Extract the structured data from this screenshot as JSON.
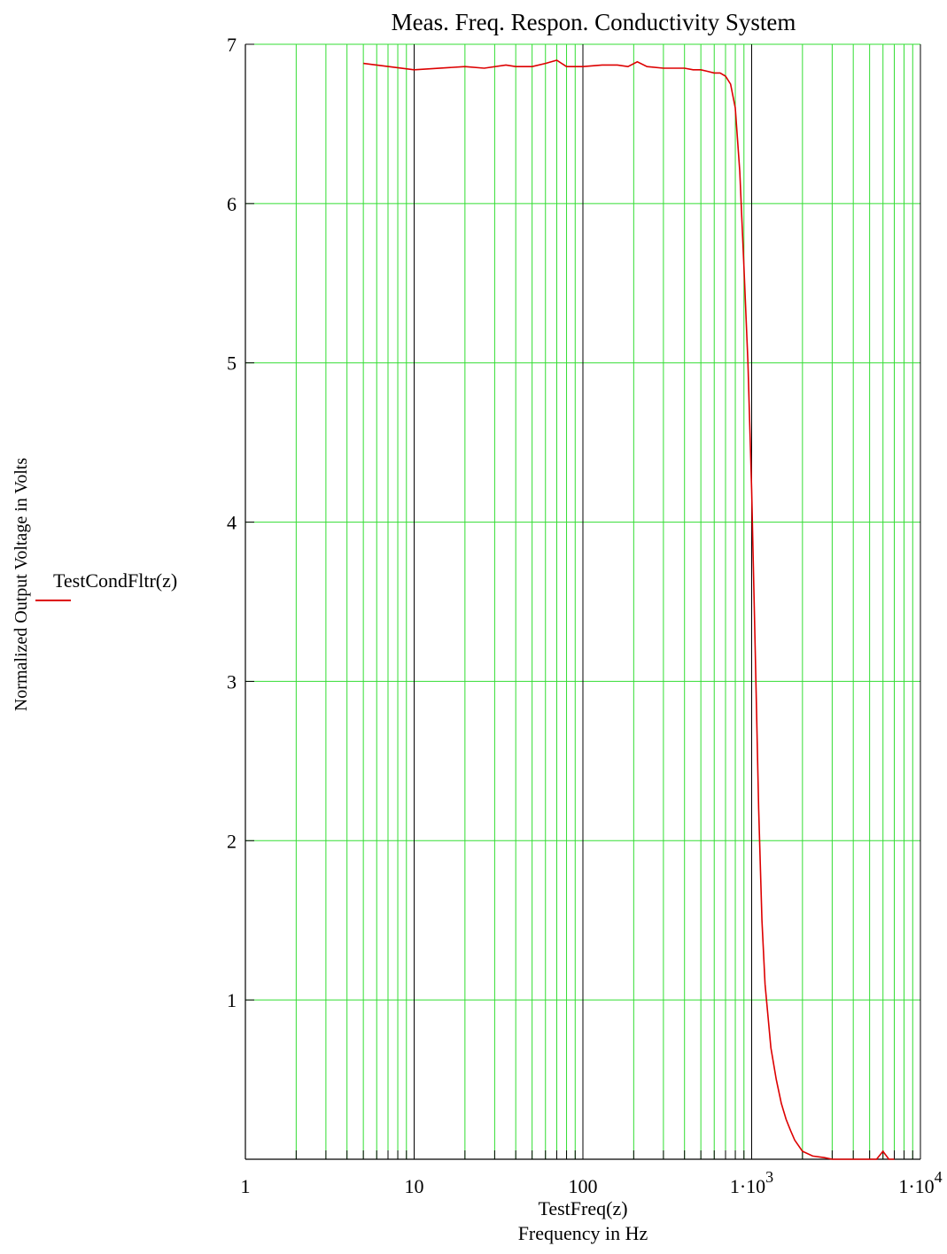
{
  "chart_data": {
    "type": "line",
    "title": "Meas. Freq. Respon. Conductivity System",
    "xlabel": "Frequency in Hz",
    "x_expression": "TestFreq(z)",
    "ylabel": "Normalized Output Voltage in Volts",
    "x_scale": "log",
    "xlim": [
      1,
      10000
    ],
    "ylim": [
      0,
      7
    ],
    "grid": true,
    "colors": {
      "grid_minor": "#33dd33",
      "grid_decade": "#000000",
      "series": "#dd0000"
    },
    "x_tick_labels": [
      {
        "value": 1,
        "main": "1",
        "sup": ""
      },
      {
        "value": 10,
        "main": "10",
        "sup": ""
      },
      {
        "value": 100,
        "main": "100",
        "sup": ""
      },
      {
        "value": 1000,
        "main": "1·10",
        "sup": "3"
      },
      {
        "value": 10000,
        "main": "1·10",
        "sup": "4"
      }
    ],
    "y_ticks": [
      1,
      2,
      3,
      4,
      5,
      6,
      7
    ],
    "y_tick_labels": [
      "1",
      "2",
      "3",
      "4",
      "5",
      "6",
      "7"
    ],
    "legend_position": "left",
    "series": [
      {
        "name": "TestCondFltr(z)",
        "color": "#dd0000",
        "x": [
          5,
          10,
          20,
          26,
          35,
          40,
          50,
          60,
          70,
          80,
          100,
          130,
          160,
          185,
          210,
          240,
          300,
          350,
          400,
          450,
          500,
          550,
          600,
          650,
          700,
          750,
          800,
          850,
          900,
          950,
          1000,
          1050,
          1100,
          1150,
          1200,
          1300,
          1400,
          1500,
          1600,
          1700,
          1800,
          2000,
          2300,
          2700,
          3000,
          4000,
          5000,
          5500,
          6000,
          6500,
          7000
        ],
        "y": [
          6.88,
          6.84,
          6.86,
          6.85,
          6.87,
          6.86,
          6.86,
          6.88,
          6.9,
          6.86,
          6.86,
          6.87,
          6.87,
          6.86,
          6.89,
          6.86,
          6.85,
          6.85,
          6.85,
          6.84,
          6.84,
          6.83,
          6.82,
          6.82,
          6.8,
          6.75,
          6.6,
          6.2,
          5.6,
          5.0,
          4.2,
          3.2,
          2.2,
          1.5,
          1.1,
          0.7,
          0.5,
          0.35,
          0.25,
          0.18,
          0.12,
          0.05,
          0.02,
          0.01,
          0.0,
          0.0,
          0.0,
          0.0,
          0.05,
          0.0,
          0.0
        ]
      }
    ]
  }
}
